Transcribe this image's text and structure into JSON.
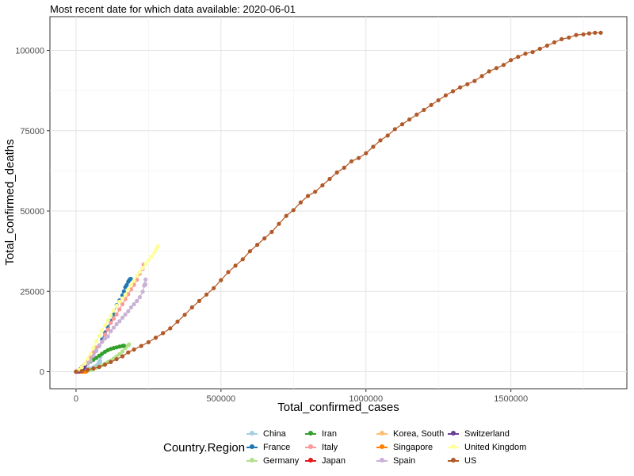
{
  "subtitle": "Most recent date for which data available: 2020-06-01",
  "chart_data": {
    "type": "line",
    "xlabel": "Total_confirmed_cases",
    "ylabel": "Total_confirmed_deaths",
    "xlim": [
      -90000,
      1900000
    ],
    "ylim": [
      -5300,
      110500
    ],
    "x_ticks": [
      0,
      500000,
      1000000,
      1500000
    ],
    "x_tick_labels": [
      "0",
      "500000",
      "1000000",
      "1500000"
    ],
    "y_ticks": [
      0,
      25000,
      50000,
      75000,
      100000
    ],
    "y_tick_labels": [
      "0",
      "25000",
      "50000",
      "75000",
      "100000"
    ],
    "grid": true,
    "legend_title": "Country.Region",
    "legend_position": "bottom",
    "series": [
      {
        "name": "China",
        "color": "#a6cee3",
        "points": [
          [
            0,
            0
          ],
          [
            10000,
            200
          ],
          [
            30000,
            600
          ],
          [
            45000,
            1100
          ],
          [
            60000,
            1400
          ],
          [
            70000,
            1800
          ],
          [
            75000,
            2200
          ],
          [
            78000,
            2700
          ],
          [
            80000,
            2900
          ],
          [
            81000,
            3100
          ],
          [
            81500,
            3300
          ],
          [
            82000,
            3300
          ],
          [
            82500,
            3300
          ],
          [
            83000,
            3300
          ],
          [
            83500,
            3300
          ],
          [
            84000,
            4600
          ],
          [
            84100,
            4600
          ]
        ]
      },
      {
        "name": "France",
        "color": "#1f78b4",
        "points": [
          [
            0,
            0
          ],
          [
            5000,
            100
          ],
          [
            10000,
            300
          ],
          [
            20000,
            900
          ],
          [
            30000,
            1800
          ],
          [
            40000,
            2600
          ],
          [
            50000,
            3500
          ],
          [
            60000,
            4700
          ],
          [
            70000,
            6500
          ],
          [
            80000,
            8000
          ],
          [
            90000,
            10000
          ],
          [
            100000,
            12200
          ],
          [
            110000,
            13800
          ],
          [
            120000,
            15700
          ],
          [
            130000,
            17900
          ],
          [
            140000,
            20700
          ],
          [
            150000,
            22200
          ],
          [
            160000,
            23800
          ],
          [
            165000,
            25000
          ],
          [
            170000,
            26300
          ],
          [
            175000,
            27000
          ],
          [
            180000,
            28000
          ],
          [
            183000,
            28400
          ],
          [
            186000,
            28800
          ],
          [
            189000,
            28900
          ]
        ]
      },
      {
        "name": "Germany",
        "color": "#b2df8a",
        "points": [
          [
            0,
            0
          ],
          [
            10000,
            20
          ],
          [
            20000,
            70
          ],
          [
            30000,
            150
          ],
          [
            40000,
            300
          ],
          [
            50000,
            500
          ],
          [
            60000,
            800
          ],
          [
            70000,
            1200
          ],
          [
            80000,
            1600
          ],
          [
            90000,
            2000
          ],
          [
            100000,
            2500
          ],
          [
            110000,
            3000
          ],
          [
            120000,
            3500
          ],
          [
            130000,
            4100
          ],
          [
            140000,
            4800
          ],
          [
            150000,
            5500
          ],
          [
            160000,
            6300
          ],
          [
            170000,
            7400
          ],
          [
            175000,
            7900
          ],
          [
            180000,
            8200
          ],
          [
            183000,
            8500
          ]
        ]
      },
      {
        "name": "Iran",
        "color": "#33a02c",
        "points": [
          [
            0,
            0
          ],
          [
            5000,
            150
          ],
          [
            10000,
            350
          ],
          [
            20000,
            1500
          ],
          [
            30000,
            2200
          ],
          [
            40000,
            2700
          ],
          [
            50000,
            3200
          ],
          [
            60000,
            3700
          ],
          [
            70000,
            4300
          ],
          [
            80000,
            5000
          ],
          [
            90000,
            5600
          ],
          [
            100000,
            6200
          ],
          [
            110000,
            6700
          ],
          [
            120000,
            7100
          ],
          [
            130000,
            7400
          ],
          [
            140000,
            7600
          ],
          [
            150000,
            7800
          ],
          [
            160000,
            8000
          ],
          [
            165000,
            8100
          ]
        ]
      },
      {
        "name": "Italy",
        "color": "#fb9a99",
        "points": [
          [
            0,
            0
          ],
          [
            10000,
            600
          ],
          [
            20000,
            1500
          ],
          [
            30000,
            2500
          ],
          [
            40000,
            3400
          ],
          [
            50000,
            4800
          ],
          [
            60000,
            6000
          ],
          [
            70000,
            7500
          ],
          [
            80000,
            8200
          ],
          [
            90000,
            9300
          ],
          [
            100000,
            11600
          ],
          [
            110000,
            13100
          ],
          [
            120000,
            15200
          ],
          [
            130000,
            16500
          ],
          [
            140000,
            17800
          ],
          [
            150000,
            19400
          ],
          [
            160000,
            21000
          ],
          [
            170000,
            22600
          ],
          [
            180000,
            24100
          ],
          [
            190000,
            25600
          ],
          [
            200000,
            27000
          ],
          [
            210000,
            28600
          ],
          [
            220000,
            30500
          ],
          [
            230000,
            32000
          ],
          [
            233000,
            33400
          ]
        ]
      },
      {
        "name": "Japan",
        "color": "#e31a1c",
        "points": [
          [
            0,
            0
          ],
          [
            4000,
            100
          ],
          [
            8000,
            200
          ],
          [
            12000,
            350
          ],
          [
            15000,
            500
          ],
          [
            16500,
            850
          ],
          [
            17000,
            880
          ]
        ]
      },
      {
        "name": "Korea, South",
        "color": "#fdbf6f",
        "points": [
          [
            0,
            0
          ],
          [
            3000,
            20
          ],
          [
            6000,
            40
          ],
          [
            8000,
            70
          ],
          [
            9000,
            120
          ],
          [
            10000,
            180
          ],
          [
            10500,
            220
          ],
          [
            11000,
            260
          ],
          [
            11500,
            270
          ]
        ]
      },
      {
        "name": "Singapore",
        "color": "#ff7f00",
        "points": [
          [
            0,
            0
          ],
          [
            5000,
            5
          ],
          [
            10000,
            10
          ],
          [
            15000,
            15
          ],
          [
            20000,
            20
          ],
          [
            25000,
            23
          ],
          [
            30000,
            24
          ],
          [
            35000,
            24
          ]
        ]
      },
      {
        "name": "Spain",
        "color": "#cab2d6",
        "points": [
          [
            0,
            0
          ],
          [
            10000,
            300
          ],
          [
            20000,
            1000
          ],
          [
            30000,
            1700
          ],
          [
            40000,
            2700
          ],
          [
            50000,
            3400
          ],
          [
            60000,
            5000
          ],
          [
            70000,
            6500
          ],
          [
            80000,
            8000
          ],
          [
            90000,
            9300
          ],
          [
            100000,
            10300
          ],
          [
            110000,
            11000
          ],
          [
            120000,
            12600
          ],
          [
            130000,
            13700
          ],
          [
            140000,
            14800
          ],
          [
            150000,
            15700
          ],
          [
            160000,
            16800
          ],
          [
            170000,
            17800
          ],
          [
            180000,
            18800
          ],
          [
            190000,
            20000
          ],
          [
            200000,
            21000
          ],
          [
            210000,
            22000
          ],
          [
            220000,
            23200
          ],
          [
            230000,
            24900
          ],
          [
            235000,
            26800
          ],
          [
            238000,
            27300
          ],
          [
            240000,
            28700
          ],
          [
            239000,
            27100
          ]
        ]
      },
      {
        "name": "Switzerland",
        "color": "#6a3d9a",
        "points": [
          [
            0,
            0
          ],
          [
            5000,
            40
          ],
          [
            10000,
            120
          ],
          [
            15000,
            300
          ],
          [
            20000,
            600
          ],
          [
            25000,
            1100
          ],
          [
            28000,
            1400
          ],
          [
            30000,
            1650
          ],
          [
            30800,
            1900
          ]
        ]
      },
      {
        "name": "United Kingdom",
        "color": "#ffff99",
        "points": [
          [
            0,
            0
          ],
          [
            10000,
            500
          ],
          [
            20000,
            1400
          ],
          [
            30000,
            2500
          ],
          [
            40000,
            4000
          ],
          [
            50000,
            5600
          ],
          [
            60000,
            7500
          ],
          [
            70000,
            9500
          ],
          [
            80000,
            11200
          ],
          [
            90000,
            12800
          ],
          [
            100000,
            14500
          ],
          [
            110000,
            16000
          ],
          [
            120000,
            17500
          ],
          [
            130000,
            19000
          ],
          [
            140000,
            20500
          ],
          [
            150000,
            21800
          ],
          [
            160000,
            22800
          ],
          [
            170000,
            24000
          ],
          [
            180000,
            25600
          ],
          [
            190000,
            27000
          ],
          [
            200000,
            28300
          ],
          [
            210000,
            29800
          ],
          [
            220000,
            31000
          ],
          [
            230000,
            32300
          ],
          [
            240000,
            33600
          ],
          [
            250000,
            34700
          ],
          [
            260000,
            35800
          ],
          [
            270000,
            36900
          ],
          [
            276000,
            38000
          ],
          [
            280000,
            38700
          ],
          [
            283000,
            39100
          ]
        ]
      },
      {
        "name": "US",
        "color": "#b15928",
        "points": [
          [
            0,
            0
          ],
          [
            20000,
            200
          ],
          [
            40000,
            600
          ],
          [
            60000,
            1000
          ],
          [
            80000,
            1500
          ],
          [
            100000,
            2200
          ],
          [
            120000,
            3000
          ],
          [
            140000,
            3900
          ],
          [
            160000,
            4800
          ],
          [
            180000,
            6000
          ],
          [
            200000,
            6900
          ],
          [
            225000,
            8000
          ],
          [
            250000,
            9200
          ],
          [
            275000,
            10600
          ],
          [
            300000,
            12000
          ],
          [
            325000,
            13500
          ],
          [
            350000,
            15600
          ],
          [
            375000,
            17700
          ],
          [
            400000,
            20000
          ],
          [
            425000,
            22000
          ],
          [
            450000,
            24000
          ],
          [
            475000,
            26000
          ],
          [
            500000,
            28500
          ],
          [
            525000,
            31000
          ],
          [
            550000,
            33000
          ],
          [
            575000,
            35000
          ],
          [
            600000,
            37500
          ],
          [
            625000,
            39500
          ],
          [
            650000,
            41500
          ],
          [
            675000,
            43500
          ],
          [
            700000,
            46000
          ],
          [
            725000,
            48500
          ],
          [
            750000,
            50300
          ],
          [
            775000,
            52700
          ],
          [
            800000,
            54700
          ],
          [
            825000,
            56000
          ],
          [
            850000,
            58000
          ],
          [
            875000,
            60000
          ],
          [
            900000,
            62000
          ],
          [
            925000,
            63500
          ],
          [
            950000,
            65500
          ],
          [
            975000,
            66500
          ],
          [
            1000000,
            68000
          ],
          [
            1025000,
            70000
          ],
          [
            1050000,
            72000
          ],
          [
            1075000,
            73500
          ],
          [
            1100000,
            75500
          ],
          [
            1125000,
            77000
          ],
          [
            1150000,
            78500
          ],
          [
            1175000,
            80000
          ],
          [
            1200000,
            81500
          ],
          [
            1225000,
            83000
          ],
          [
            1250000,
            84500
          ],
          [
            1275000,
            86000
          ],
          [
            1300000,
            87300
          ],
          [
            1325000,
            88500
          ],
          [
            1350000,
            89500
          ],
          [
            1375000,
            90500
          ],
          [
            1400000,
            92000
          ],
          [
            1425000,
            93500
          ],
          [
            1450000,
            94500
          ],
          [
            1475000,
            95500
          ],
          [
            1500000,
            97000
          ],
          [
            1525000,
            98000
          ],
          [
            1550000,
            99000
          ],
          [
            1575000,
            99500
          ],
          [
            1600000,
            100500
          ],
          [
            1625000,
            101500
          ],
          [
            1650000,
            102500
          ],
          [
            1675000,
            103500
          ],
          [
            1700000,
            104000
          ],
          [
            1725000,
            104800
          ],
          [
            1750000,
            105000
          ],
          [
            1770000,
            105300
          ],
          [
            1790000,
            105500
          ],
          [
            1810000,
            105500
          ]
        ]
      }
    ]
  }
}
